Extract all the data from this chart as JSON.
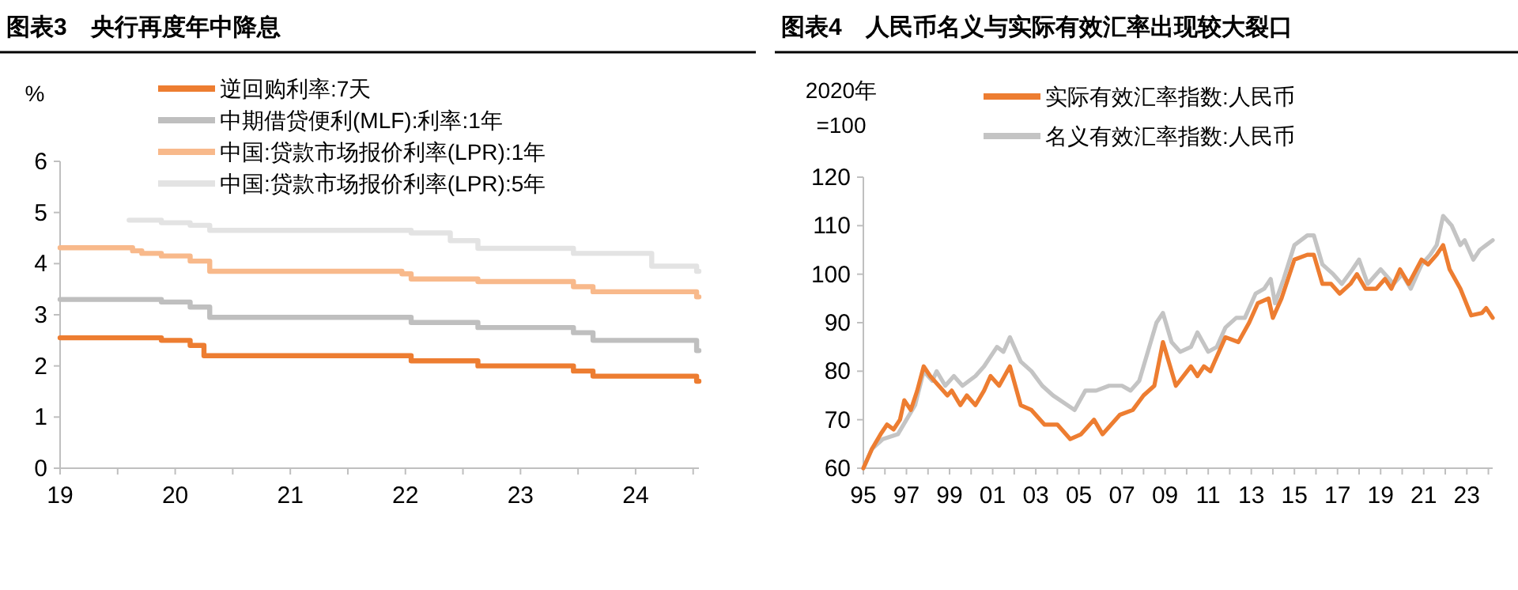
{
  "chart_data": [
    {
      "type": "step",
      "title": "图表3　央行再度年中降息",
      "ylabel": "%",
      "legend": "top",
      "grid": false,
      "xlim": [
        2019,
        2024.55
      ],
      "xticks": [
        {
          "value": 2019,
          "label": "19"
        },
        {
          "value": 2019.5,
          "label": null
        },
        {
          "value": 2020,
          "label": "20"
        },
        {
          "value": 2020.5,
          "label": null
        },
        {
          "value": 2021,
          "label": "21"
        },
        {
          "value": 2021.5,
          "label": null
        },
        {
          "value": 2022,
          "label": "22"
        },
        {
          "value": 2022.5,
          "label": null
        },
        {
          "value": 2023,
          "label": "23"
        },
        {
          "value": 2023.5,
          "label": null
        },
        {
          "value": 2024,
          "label": "24"
        },
        {
          "value": 2024.5,
          "label": null
        }
      ],
      "ylim": [
        0,
        6
      ],
      "yticks": [
        0,
        1,
        2,
        3,
        4,
        5,
        6
      ],
      "series": [
        {
          "name": "逆回购利率:7天",
          "color": "#ed7d31",
          "x": [
            2019,
            2019.88,
            2020.13,
            2020.25,
            2022.05,
            2022.63,
            2023.46,
            2023.63,
            2024.53,
            2024.55
          ],
          "values": [
            2.55,
            2.5,
            2.4,
            2.2,
            2.1,
            2.0,
            1.9,
            1.8,
            1.7,
            1.7
          ]
        },
        {
          "name": "中期借贷便利(MLF):利率:1年",
          "color": "#bfbfbf",
          "x": [
            2019,
            2019.88,
            2020.13,
            2020.3,
            2022.05,
            2022.63,
            2023.46,
            2023.63,
            2024.53,
            2024.55
          ],
          "values": [
            3.3,
            3.25,
            3.15,
            2.95,
            2.85,
            2.75,
            2.65,
            2.5,
            2.3,
            2.3
          ]
        },
        {
          "name": "中国:贷款市场报价利率(LPR):1年",
          "color": "#f8b98b",
          "x": [
            2019,
            2019.63,
            2019.71,
            2019.88,
            2020.13,
            2020.3,
            2021.97,
            2022.05,
            2022.63,
            2023.46,
            2023.63,
            2024.53,
            2024.55
          ],
          "values": [
            4.31,
            4.25,
            4.2,
            4.15,
            4.05,
            3.85,
            3.8,
            3.7,
            3.65,
            3.55,
            3.45,
            3.35,
            3.35
          ]
        },
        {
          "name": "中国:贷款市场报价利率(LPR):5年",
          "color": "#e3e3e3",
          "x": [
            2019.6,
            2019.88,
            2020.13,
            2020.3,
            2022.05,
            2022.39,
            2022.63,
            2023.46,
            2024.14,
            2024.53,
            2024.55
          ],
          "values": [
            4.85,
            4.8,
            4.75,
            4.65,
            4.6,
            4.45,
            4.3,
            4.2,
            3.95,
            3.85,
            3.85
          ]
        }
      ]
    },
    {
      "type": "line",
      "title": "图表4　人民币名义与实际有效汇率出现较大裂口",
      "ylabel": "2020年\n=100",
      "legend": "top",
      "grid": false,
      "xlim": [
        1995,
        2024.2
      ],
      "xticks": [
        {
          "value": 1995,
          "label": "95"
        },
        {
          "value": 1996,
          "label": null
        },
        {
          "value": 1997,
          "label": "97"
        },
        {
          "value": 1998,
          "label": null
        },
        {
          "value": 1999,
          "label": "99"
        },
        {
          "value": 2000,
          "label": null
        },
        {
          "value": 2001,
          "label": "01"
        },
        {
          "value": 2002,
          "label": null
        },
        {
          "value": 2003,
          "label": "03"
        },
        {
          "value": 2004,
          "label": null
        },
        {
          "value": 2005,
          "label": "05"
        },
        {
          "value": 2006,
          "label": null
        },
        {
          "value": 2007,
          "label": "07"
        },
        {
          "value": 2008,
          "label": null
        },
        {
          "value": 2009,
          "label": "09"
        },
        {
          "value": 2010,
          "label": null
        },
        {
          "value": 2011,
          "label": "11"
        },
        {
          "value": 2012,
          "label": null
        },
        {
          "value": 2013,
          "label": "13"
        },
        {
          "value": 2014,
          "label": null
        },
        {
          "value": 2015,
          "label": "15"
        },
        {
          "value": 2016,
          "label": null
        },
        {
          "value": 2017,
          "label": "17"
        },
        {
          "value": 2018,
          "label": null
        },
        {
          "value": 2019,
          "label": "19"
        },
        {
          "value": 2020,
          "label": null
        },
        {
          "value": 2021,
          "label": "21"
        },
        {
          "value": 2022,
          "label": null
        },
        {
          "value": 2023,
          "label": "23"
        },
        {
          "value": 2024,
          "label": null
        }
      ],
      "ylim": [
        60,
        120
      ],
      "yticks": [
        60,
        70,
        80,
        90,
        100,
        110,
        120
      ],
      "series": [
        {
          "name": "实际有效汇率指数:人民币",
          "color": "#ed7d31",
          "x": [
            1995,
            1995.4,
            1995.8,
            1996.1,
            1996.4,
            1996.7,
            1996.9,
            1997.2,
            1997.5,
            1997.8,
            1998.1,
            1998.5,
            1998.9,
            1999.1,
            1999.5,
            1999.8,
            2000.2,
            2000.6,
            2000.9,
            2001.3,
            2001.8,
            2002.3,
            2002.8,
            2003.4,
            2004.0,
            2004.6,
            2005.1,
            2005.7,
            2006.1,
            2006.9,
            2007.5,
            2008.0,
            2008.5,
            2008.9,
            2009.5,
            2010.2,
            2010.5,
            2010.8,
            2011.1,
            2011.3,
            2011.8,
            2012.4,
            2012.9,
            2013.3,
            2013.8,
            2014.0,
            2014.4,
            2015.0,
            2015.6,
            2015.9,
            2016.3,
            2016.7,
            2017.1,
            2017.6,
            2017.9,
            2018.3,
            2018.8,
            2019.2,
            2019.5,
            2019.9,
            2020.3,
            2020.9,
            2021.2,
            2021.6,
            2021.9,
            2022.2,
            2022.7,
            2023.2,
            2023.7,
            2023.9,
            2024.2
          ],
          "values": [
            60,
            64,
            67,
            69,
            68,
            70,
            74,
            72,
            76,
            81,
            79,
            77,
            75,
            76,
            73,
            75,
            73,
            76,
            79,
            77,
            81,
            73,
            72,
            69,
            69,
            66,
            67,
            70,
            67,
            71,
            72,
            75,
            77,
            86,
            77,
            81,
            79,
            81,
            80,
            82,
            87,
            86,
            90,
            94,
            95,
            91,
            95,
            103,
            104,
            104,
            98,
            98,
            96,
            98,
            100,
            97,
            97,
            99,
            97,
            101,
            98,
            103,
            102,
            104,
            106,
            101,
            97,
            91.5,
            92,
            93,
            91
          ]
        },
        {
          "name": "名义有效汇率指数:人民币",
          "color": "#c4c4c4",
          "x": [
            1995,
            1995.4,
            1995.9,
            1996.6,
            1997.0,
            1997.4,
            1997.8,
            1998.2,
            1998.4,
            1998.8,
            1999.2,
            1999.6,
            2000.2,
            2000.6,
            2001.2,
            2001.5,
            2001.8,
            2002.3,
            2002.8,
            2003.3,
            2003.8,
            2004.8,
            2005.3,
            2005.8,
            2006.4,
            2007.0,
            2007.4,
            2007.8,
            2008.6,
            2008.9,
            2009.3,
            2009.7,
            2010.2,
            2010.5,
            2011.0,
            2011.4,
            2011.8,
            2012.3,
            2012.7,
            2013.2,
            2013.6,
            2013.9,
            2014.1,
            2014.5,
            2015.0,
            2015.6,
            2015.9,
            2016.3,
            2016.8,
            2017.2,
            2017.7,
            2018.0,
            2018.4,
            2019.0,
            2019.6,
            2020.0,
            2020.4,
            2020.9,
            2021.3,
            2021.6,
            2021.9,
            2022.3,
            2022.7,
            2022.9,
            2023.3,
            2023.6,
            2023.9,
            2024.2
          ],
          "values": [
            60,
            64,
            66,
            67,
            70,
            73,
            80,
            78,
            80,
            77,
            79,
            77,
            79,
            81,
            85,
            84,
            87,
            82,
            80,
            77,
            75,
            72,
            76,
            76,
            77,
            77,
            76,
            78,
            90,
            92,
            86,
            84,
            85,
            88,
            84,
            85,
            89,
            91,
            91,
            96,
            97,
            99,
            94,
            99,
            106,
            108,
            108,
            102,
            100,
            98,
            101,
            103,
            98,
            101,
            98,
            100,
            97,
            102,
            104,
            106,
            112,
            110,
            106,
            107,
            103,
            105,
            106,
            107
          ]
        }
      ]
    }
  ]
}
